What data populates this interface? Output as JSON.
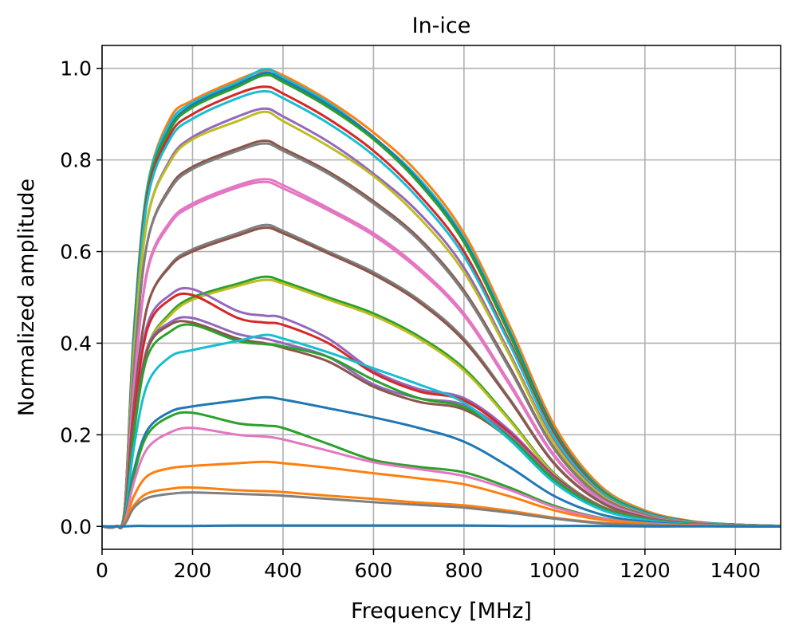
{
  "chart_data": {
    "type": "line",
    "title": "In-ice",
    "xlabel": "Frequency [MHz]",
    "ylabel": "Normalized amplitude",
    "xlim": [
      0,
      1500
    ],
    "ylim": [
      -0.05,
      1.05
    ],
    "grid": true,
    "legend": "none",
    "xticks": [
      0,
      200,
      400,
      600,
      800,
      1000,
      1200,
      1400
    ],
    "xtick_labels": [
      "0",
      "200",
      "400",
      "600",
      "800",
      "1000",
      "1200",
      "1400"
    ],
    "yticks": [
      0.0,
      0.2,
      0.4,
      0.6,
      0.8,
      1.0
    ],
    "ytick_labels": [
      "0.0",
      "0.2",
      "0.4",
      "0.6",
      "0.8",
      "1.0"
    ],
    "x": [
      0,
      30,
      50,
      70,
      100,
      150,
      200,
      300,
      360,
      400,
      500,
      600,
      700,
      800,
      900,
      1000,
      1100,
      1200,
      1300,
      1400,
      1500
    ],
    "series": [
      {
        "name": "1",
        "color": "#ff7f0e",
        "values": [
          0,
          0,
          0.04,
          0.42,
          0.74,
          0.89,
          0.93,
          0.975,
          0.995,
          0.985,
          0.93,
          0.86,
          0.77,
          0.64,
          0.44,
          0.22,
          0.09,
          0.035,
          0.012,
          0.004,
          0.001
        ]
      },
      {
        "name": "2",
        "color": "#17becf",
        "values": [
          0,
          0,
          0.04,
          0.42,
          0.74,
          0.88,
          0.925,
          0.97,
          0.998,
          0.98,
          0.925,
          0.85,
          0.76,
          0.63,
          0.43,
          0.21,
          0.085,
          0.032,
          0.011,
          0.004,
          0.001
        ]
      },
      {
        "name": "3",
        "color": "#1f77b4",
        "values": [
          0,
          0,
          0.04,
          0.41,
          0.73,
          0.87,
          0.92,
          0.965,
          0.99,
          0.975,
          0.92,
          0.85,
          0.755,
          0.625,
          0.425,
          0.21,
          0.083,
          0.031,
          0.011,
          0.004,
          0.001
        ]
      },
      {
        "name": "4",
        "color": "#2ca02c",
        "values": [
          0,
          0,
          0.04,
          0.41,
          0.73,
          0.865,
          0.915,
          0.96,
          0.985,
          0.97,
          0.915,
          0.845,
          0.75,
          0.62,
          0.42,
          0.205,
          0.082,
          0.03,
          0.01,
          0.004,
          0.001
        ]
      },
      {
        "name": "5",
        "color": "#d62728",
        "values": [
          0,
          0,
          0.04,
          0.4,
          0.72,
          0.855,
          0.9,
          0.945,
          0.96,
          0.945,
          0.89,
          0.82,
          0.725,
          0.6,
          0.405,
          0.2,
          0.078,
          0.029,
          0.01,
          0.004,
          0.001
        ]
      },
      {
        "name": "6",
        "color": "#17becf",
        "values": [
          0,
          0,
          0.04,
          0.39,
          0.71,
          0.845,
          0.89,
          0.935,
          0.95,
          0.935,
          0.88,
          0.81,
          0.715,
          0.59,
          0.4,
          0.195,
          0.077,
          0.029,
          0.01,
          0.004,
          0.001
        ]
      },
      {
        "name": "7",
        "color": "#9467bd",
        "values": [
          0,
          0,
          0.04,
          0.37,
          0.67,
          0.8,
          0.85,
          0.895,
          0.912,
          0.895,
          0.84,
          0.77,
          0.685,
          0.565,
          0.38,
          0.185,
          0.073,
          0.027,
          0.009,
          0.003,
          0.001
        ]
      },
      {
        "name": "8",
        "color": "#bcbd22",
        "values": [
          0,
          0,
          0.04,
          0.37,
          0.67,
          0.795,
          0.845,
          0.885,
          0.905,
          0.885,
          0.83,
          0.765,
          0.675,
          0.555,
          0.375,
          0.18,
          0.071,
          0.026,
          0.009,
          0.003,
          0.001
        ]
      },
      {
        "name": "9",
        "color": "#8c564b",
        "values": [
          0,
          0,
          0.035,
          0.34,
          0.62,
          0.74,
          0.785,
          0.825,
          0.842,
          0.825,
          0.775,
          0.71,
          0.63,
          0.515,
          0.35,
          0.17,
          0.067,
          0.025,
          0.008,
          0.003,
          0.001
        ]
      },
      {
        "name": "10",
        "color": "#7f7f7f",
        "values": [
          0,
          0,
          0.035,
          0.34,
          0.62,
          0.735,
          0.78,
          0.82,
          0.836,
          0.82,
          0.77,
          0.705,
          0.625,
          0.51,
          0.345,
          0.168,
          0.066,
          0.024,
          0.008,
          0.003,
          0.001
        ]
      },
      {
        "name": "11",
        "color": "#e377c2",
        "values": [
          0,
          0,
          0.03,
          0.3,
          0.56,
          0.665,
          0.705,
          0.745,
          0.758,
          0.745,
          0.695,
          0.64,
          0.565,
          0.465,
          0.315,
          0.155,
          0.061,
          0.022,
          0.008,
          0.003,
          0.001
        ]
      },
      {
        "name": "12",
        "color": "#e377c2",
        "values": [
          0,
          0,
          0.03,
          0.3,
          0.555,
          0.66,
          0.7,
          0.74,
          0.752,
          0.738,
          0.69,
          0.635,
          0.56,
          0.46,
          0.31,
          0.152,
          0.06,
          0.022,
          0.008,
          0.003,
          0.001
        ]
      },
      {
        "name": "13",
        "color": "#7f7f7f",
        "values": [
          0,
          0,
          0.025,
          0.26,
          0.48,
          0.57,
          0.605,
          0.64,
          0.658,
          0.645,
          0.6,
          0.555,
          0.495,
          0.41,
          0.28,
          0.138,
          0.055,
          0.02,
          0.007,
          0.003,
          0.001
        ]
      },
      {
        "name": "14",
        "color": "#8c564b",
        "values": [
          0,
          0,
          0.025,
          0.26,
          0.48,
          0.567,
          0.6,
          0.635,
          0.652,
          0.64,
          0.596,
          0.55,
          0.49,
          0.405,
          0.277,
          0.136,
          0.054,
          0.02,
          0.007,
          0.003,
          0.001
        ]
      },
      {
        "name": "15",
        "color": "#2ca02c",
        "values": [
          0,
          0,
          0.02,
          0.21,
          0.39,
          0.465,
          0.5,
          0.53,
          0.545,
          0.535,
          0.5,
          0.465,
          0.415,
          0.345,
          0.235,
          0.115,
          0.046,
          0.017,
          0.006,
          0.002,
          0.001
        ]
      },
      {
        "name": "16",
        "color": "#bcbd22",
        "values": [
          0,
          0,
          0.02,
          0.21,
          0.39,
          0.46,
          0.495,
          0.525,
          0.538,
          0.53,
          0.495,
          0.46,
          0.41,
          0.34,
          0.232,
          0.113,
          0.045,
          0.017,
          0.006,
          0.002,
          0.001
        ]
      },
      {
        "name": "17",
        "color": "#9467bd",
        "values": [
          0,
          0,
          0.02,
          0.24,
          0.44,
          0.505,
          0.518,
          0.47,
          0.46,
          0.455,
          0.41,
          0.34,
          0.3,
          0.28,
          0.21,
          0.11,
          0.045,
          0.017,
          0.006,
          0.002,
          0.001
        ]
      },
      {
        "name": "18",
        "color": "#d62728",
        "values": [
          0,
          0,
          0.02,
          0.235,
          0.43,
          0.495,
          0.505,
          0.455,
          0.445,
          0.44,
          0.4,
          0.335,
          0.295,
          0.275,
          0.205,
          0.108,
          0.044,
          0.016,
          0.006,
          0.002,
          0.001
        ]
      },
      {
        "name": "19",
        "color": "#9467bd",
        "values": [
          0,
          0,
          0.02,
          0.21,
          0.39,
          0.445,
          0.455,
          0.42,
          0.41,
          0.4,
          0.37,
          0.31,
          0.28,
          0.265,
          0.2,
          0.105,
          0.043,
          0.016,
          0.006,
          0.002,
          0.001
        ]
      },
      {
        "name": "20",
        "color": "#8c564b",
        "values": [
          0,
          0,
          0.02,
          0.205,
          0.385,
          0.44,
          0.445,
          0.41,
          0.4,
          0.39,
          0.36,
          0.305,
          0.272,
          0.255,
          0.192,
          0.101,
          0.042,
          0.016,
          0.006,
          0.002,
          0.001
        ]
      },
      {
        "name": "21",
        "color": "#2ca02c",
        "values": [
          0,
          0,
          0.02,
          0.2,
          0.37,
          0.425,
          0.44,
          0.405,
          0.398,
          0.393,
          0.37,
          0.32,
          0.28,
          0.26,
          0.195,
          0.102,
          0.042,
          0.016,
          0.006,
          0.002,
          0.001
        ]
      },
      {
        "name": "22",
        "color": "#17becf",
        "values": [
          0,
          0,
          0.015,
          0.17,
          0.31,
          0.37,
          0.385,
          0.405,
          0.418,
          0.41,
          0.38,
          0.345,
          0.31,
          0.27,
          0.19,
          0.095,
          0.038,
          0.014,
          0.005,
          0.002,
          0.001
        ]
      },
      {
        "name": "23",
        "color": "#1f77b4",
        "values": [
          0,
          0,
          0.012,
          0.12,
          0.21,
          0.25,
          0.262,
          0.275,
          0.282,
          0.277,
          0.258,
          0.238,
          0.215,
          0.185,
          0.13,
          0.066,
          0.027,
          0.01,
          0.004,
          0.001,
          0
        ]
      },
      {
        "name": "24",
        "color": "#2ca02c",
        "values": [
          0,
          0,
          0.01,
          0.11,
          0.2,
          0.24,
          0.248,
          0.225,
          0.22,
          0.215,
          0.18,
          0.145,
          0.13,
          0.118,
          0.085,
          0.045,
          0.019,
          0.007,
          0.003,
          0.001,
          0
        ]
      },
      {
        "name": "25",
        "color": "#e377c2",
        "values": [
          0,
          0,
          0.01,
          0.095,
          0.17,
          0.205,
          0.215,
          0.2,
          0.196,
          0.19,
          0.165,
          0.14,
          0.125,
          0.11,
          0.08,
          0.042,
          0.018,
          0.007,
          0.003,
          0.001,
          0
        ]
      },
      {
        "name": "26",
        "color": "#ff7f0e",
        "values": [
          0,
          0,
          0.008,
          0.065,
          0.11,
          0.127,
          0.132,
          0.138,
          0.141,
          0.138,
          0.128,
          0.116,
          0.105,
          0.092,
          0.066,
          0.035,
          0.015,
          0.006,
          0.002,
          0.001,
          0
        ]
      },
      {
        "name": "27",
        "color": "#ff7f0e",
        "values": [
          0,
          0,
          0.005,
          0.045,
          0.072,
          0.082,
          0.085,
          0.079,
          0.077,
          0.075,
          0.067,
          0.06,
          0.052,
          0.046,
          0.034,
          0.019,
          0.008,
          0.003,
          0.001,
          0,
          0
        ]
      },
      {
        "name": "28",
        "color": "#7f7f7f",
        "values": [
          0,
          0,
          0.005,
          0.04,
          0.062,
          0.071,
          0.074,
          0.071,
          0.069,
          0.067,
          0.06,
          0.053,
          0.047,
          0.041,
          0.03,
          0.017,
          0.007,
          0.003,
          0.001,
          0,
          0
        ]
      },
      {
        "name": "29",
        "color": "#1f77b4",
        "values": [
          0,
          0,
          0,
          0.001,
          0.001,
          0.001,
          0.001,
          0.002,
          0.002,
          0.002,
          0.002,
          0.002,
          0.002,
          0.002,
          0.001,
          0.001,
          0.001,
          0,
          0,
          0,
          0
        ]
      }
    ]
  }
}
